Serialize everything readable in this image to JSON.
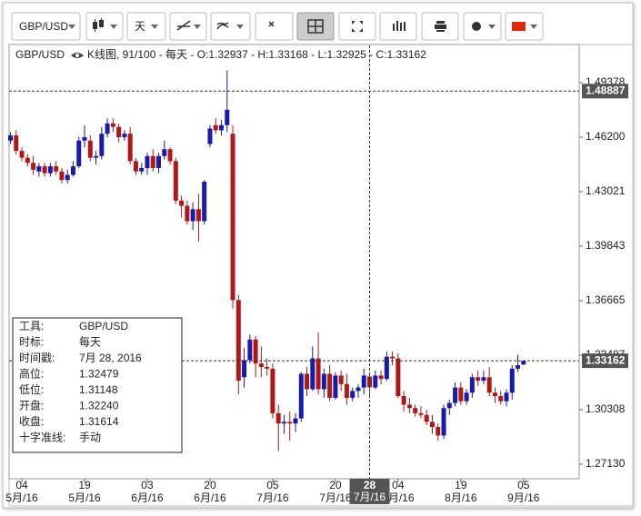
{
  "toolbar": {
    "symbol": "GBP/USD",
    "timeframe": "天"
  },
  "chart_data": {
    "type": "candlestick",
    "symbol": "GBP/USD",
    "header": "K线图, 91/100 - 每天 - O:1.32937 - H:1.33168 - L:1.32925 - C:1.33162",
    "up_color": "#1a1aa8",
    "down_color": "#b01818",
    "categories": [
      null,
      null,
      "04",
      null,
      null,
      null,
      null,
      null,
      null,
      null,
      null,
      null,
      null,
      "19",
      null,
      null,
      null,
      null,
      null,
      null,
      null,
      null,
      null,
      null,
      "03",
      null,
      null,
      null,
      null,
      null,
      null,
      null,
      null,
      null,
      null,
      "20",
      null,
      null,
      null,
      null,
      null,
      null,
      null,
      null,
      null,
      null,
      "05",
      null,
      null,
      null,
      null,
      null,
      null,
      null,
      null,
      null,
      null,
      "20",
      null,
      null,
      null,
      null,
      null,
      "28",
      null,
      null,
      null,
      null,
      "04",
      null,
      null,
      null,
      null,
      null,
      null,
      null,
      null,
      null,
      null,
      "19",
      null,
      null,
      null,
      null,
      null,
      null,
      null,
      null,
      null,
      null,
      "05"
    ],
    "category_months": [
      null,
      null,
      "5月/16",
      null,
      null,
      null,
      null,
      null,
      null,
      null,
      null,
      null,
      null,
      "5月/16",
      null,
      null,
      null,
      null,
      null,
      null,
      null,
      null,
      null,
      null,
      "6月/16",
      null,
      null,
      null,
      null,
      null,
      null,
      null,
      null,
      null,
      null,
      "6月/16",
      null,
      null,
      null,
      null,
      null,
      null,
      null,
      null,
      null,
      null,
      "7月/16",
      null,
      null,
      null,
      null,
      null,
      null,
      null,
      null,
      null,
      null,
      "7月/16",
      null,
      null,
      null,
      null,
      null,
      "7月/16",
      null,
      null,
      null,
      null,
      "8月/16",
      null,
      null,
      null,
      null,
      null,
      null,
      null,
      null,
      null,
      null,
      "8月/16",
      null,
      null,
      null,
      null,
      null,
      null,
      null,
      null,
      null,
      null,
      "9月/16"
    ],
    "open": [
      1.46,
      1.463,
      1.454,
      1.45,
      1.447,
      1.442,
      1.445,
      1.441,
      1.445,
      1.442,
      1.437,
      1.44,
      1.445,
      1.46,
      1.46,
      1.45,
      1.451,
      1.464,
      1.47,
      1.468,
      1.462,
      1.464,
      1.448,
      1.442,
      1.444,
      1.451,
      1.444,
      1.451,
      1.455,
      1.448,
      1.425,
      1.422,
      1.413,
      1.42,
      1.413,
      1.458,
      1.469,
      1.466,
      1.469,
      1.464,
      1.367,
      1.322,
      1.332,
      1.344,
      1.33,
      1.328,
      1.327,
      1.301,
      1.295,
      1.296,
      1.295,
      1.298,
      1.324,
      1.315,
      1.333,
      1.315,
      1.324,
      1.31,
      1.323,
      1.318,
      1.31,
      1.314,
      1.316,
      1.3224,
      1.316,
      1.323,
      1.321,
      1.334,
      1.333,
      1.311,
      1.306,
      1.304,
      1.301,
      1.3,
      1.296,
      1.293,
      1.288,
      1.304,
      1.307,
      1.316,
      1.308,
      1.313,
      1.322,
      1.32,
      1.322,
      1.313,
      1.311,
      1.308,
      1.313,
      1.327,
      1.32937
    ],
    "high": [
      1.465,
      1.466,
      1.456,
      1.452,
      1.451,
      1.447,
      1.447,
      1.447,
      1.448,
      1.444,
      1.443,
      1.448,
      1.462,
      1.469,
      1.463,
      1.454,
      1.468,
      1.473,
      1.473,
      1.47,
      1.466,
      1.468,
      1.45,
      1.447,
      1.453,
      1.455,
      1.453,
      1.46,
      1.456,
      1.45,
      1.428,
      1.425,
      1.424,
      1.429,
      1.437,
      1.469,
      1.473,
      1.472,
      1.501,
      1.469,
      1.37,
      1.339,
      1.347,
      1.346,
      1.34,
      1.333,
      1.33,
      1.306,
      1.3,
      1.302,
      1.301,
      1.325,
      1.328,
      1.34,
      1.348,
      1.327,
      1.329,
      1.325,
      1.326,
      1.324,
      1.316,
      1.318,
      1.327,
      1.32479,
      1.326,
      1.326,
      1.337,
      1.337,
      1.336,
      1.314,
      1.31,
      1.306,
      1.305,
      1.303,
      1.3,
      1.295,
      1.306,
      1.309,
      1.319,
      1.319,
      1.315,
      1.324,
      1.326,
      1.326,
      1.328,
      1.316,
      1.314,
      1.315,
      1.329,
      1.335,
      1.33168
    ],
    "low": [
      1.458,
      1.452,
      1.448,
      1.445,
      1.44,
      1.439,
      1.439,
      1.439,
      1.44,
      1.435,
      1.435,
      1.439,
      1.444,
      1.456,
      1.448,
      1.446,
      1.449,
      1.462,
      1.465,
      1.459,
      1.46,
      1.446,
      1.44,
      1.44,
      1.44,
      1.442,
      1.441,
      1.449,
      1.446,
      1.423,
      1.415,
      1.411,
      1.408,
      1.401,
      1.411,
      1.456,
      1.464,
      1.463,
      1.465,
      1.362,
      1.312,
      1.316,
      1.33,
      1.322,
      1.322,
      1.323,
      1.298,
      1.279,
      1.289,
      1.285,
      1.29,
      1.296,
      1.311,
      1.314,
      1.312,
      1.31,
      1.308,
      1.309,
      1.314,
      1.306,
      1.308,
      1.31,
      1.312,
      1.31148,
      1.315,
      1.318,
      1.32,
      1.329,
      1.31,
      1.302,
      1.301,
      1.299,
      1.298,
      1.294,
      1.289,
      1.285,
      1.286,
      1.3,
      1.305,
      1.306,
      1.306,
      1.31,
      1.317,
      1.318,
      1.311,
      1.307,
      1.306,
      1.305,
      1.309,
      1.325,
      1.32925
    ],
    "close": [
      1.463,
      1.454,
      1.45,
      1.447,
      1.443,
      1.445,
      1.441,
      1.445,
      1.442,
      1.437,
      1.44,
      1.445,
      1.46,
      1.462,
      1.45,
      1.451,
      1.464,
      1.47,
      1.468,
      1.462,
      1.464,
      1.448,
      1.442,
      1.444,
      1.451,
      1.444,
      1.451,
      1.455,
      1.448,
      1.425,
      1.422,
      1.413,
      1.42,
      1.413,
      1.436,
      1.467,
      1.466,
      1.469,
      1.478,
      1.367,
      1.32,
      1.332,
      1.344,
      1.33,
      1.328,
      1.327,
      1.301,
      1.295,
      1.296,
      1.295,
      1.298,
      1.324,
      1.315,
      1.333,
      1.315,
      1.324,
      1.31,
      1.323,
      1.318,
      1.31,
      1.314,
      1.316,
      1.323,
      1.31614,
      1.323,
      1.321,
      1.334,
      1.333,
      1.311,
      1.306,
      1.304,
      1.301,
      1.3,
      1.296,
      1.293,
      1.288,
      1.304,
      1.307,
      1.316,
      1.308,
      1.313,
      1.322,
      1.32,
      1.322,
      1.313,
      1.311,
      1.308,
      1.313,
      1.327,
      1.329,
      1.33162
    ],
    "ylim": [
      1.2628,
      1.5155
    ],
    "yticks": [
      1.49378,
      {
        "value": 1.462,
        "label": "1.46200"
      },
      1.43021,
      1.39843,
      1.36665,
      1.33487,
      1.30308,
      {
        "value": 1.2713,
        "label": "1.27130"
      }
    ],
    "grid": false,
    "crosshair": {
      "index": 63,
      "price": 1.48887
    },
    "crosshair_info": [
      [
        "工具:",
        "GBP/USD"
      ],
      [
        "时标:",
        "每天"
      ],
      [
        "时间戳:",
        "7月 28, 2016"
      ],
      [
        "高位:",
        "1.32479"
      ],
      [
        "低位:",
        "1.31148"
      ],
      [
        "开盘:",
        "1.32240"
      ],
      [
        "收盘:",
        "1.31614"
      ],
      [
        "十字准线:",
        "手动"
      ]
    ]
  }
}
